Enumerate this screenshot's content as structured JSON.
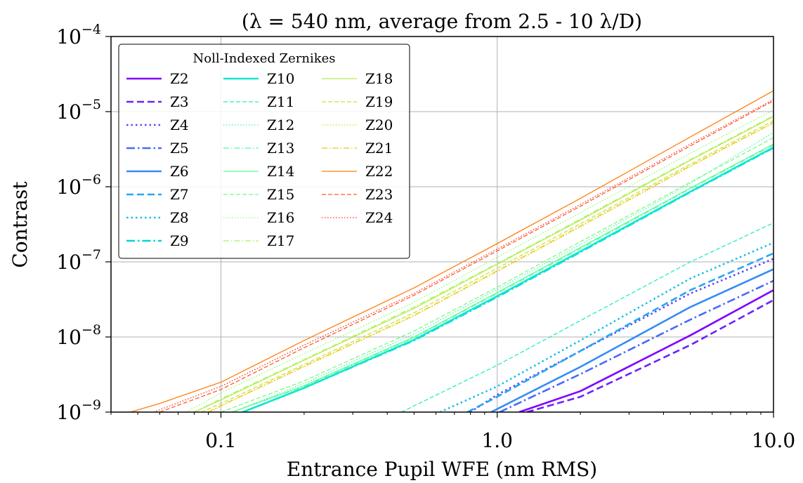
{
  "chart_data": {
    "type": "line",
    "title": "(λ = 540 nm, average from 2.5 - 10 λ/D)",
    "xlabel": "Entrance Pupil WFE (nm RMS)",
    "ylabel": "Contrast",
    "x_scale": "log",
    "y_scale": "log",
    "xlim": [
      0.04,
      10.0
    ],
    "ylim": [
      1e-09,
      0.0001
    ],
    "x_ticks": [
      {
        "value": 0.1,
        "label": "0.1"
      },
      {
        "value": 1.0,
        "label": "1.0"
      },
      {
        "value": 10.0,
        "label": "10.0"
      }
    ],
    "y_ticks": [
      {
        "value": 1e-09,
        "base": "10",
        "exp": "−9"
      },
      {
        "value": 1e-08,
        "base": "10",
        "exp": "−8"
      },
      {
        "value": 1e-07,
        "base": "10",
        "exp": "−7"
      },
      {
        "value": 1e-06,
        "base": "10",
        "exp": "−6"
      },
      {
        "value": 1e-05,
        "base": "10",
        "exp": "−5"
      },
      {
        "value": 0.0001,
        "base": "10",
        "exp": "−4"
      }
    ],
    "grid": true,
    "legend": {
      "title": "Noll-Indexed Zernikes",
      "placement": "top-left",
      "columns": 3
    },
    "series": [
      {
        "name": "Z2",
        "color": "#8000ff",
        "dash": "solid",
        "width": "thick",
        "x": [
          1.2,
          2.0,
          5.0,
          10.0
        ],
        "y": [
          1e-09,
          1.9e-09,
          1.05e-08,
          4.2e-08
        ]
      },
      {
        "name": "Z3",
        "color": "#6a23fe",
        "dash": "dashed",
        "width": "thick",
        "x": [
          1.28,
          2.0,
          5.0,
          10.0
        ],
        "y": [
          1e-09,
          1.6e-09,
          7.8e-09,
          3.1e-08
        ]
      },
      {
        "name": "Z4",
        "color": "#5e47fc",
        "dash": "dotted",
        "width": "thick",
        "x": [
          0.8,
          1.0,
          2.0,
          5.0,
          10.0
        ],
        "y": [
          1e-09,
          1.7e-09,
          6.5e-09,
          3.8e-08,
          1.1e-07
        ]
      },
      {
        "name": "Z5",
        "color": "#4a6afa",
        "dash": "dashdot",
        "width": "thick",
        "x": [
          1.02,
          2.0,
          5.0,
          10.0
        ],
        "y": [
          1e-09,
          3.2e-09,
          1.7e-08,
          5.6e-08
        ]
      },
      {
        "name": "Z6",
        "color": "#348cf5",
        "dash": "solid",
        "width": "thick",
        "x": [
          0.95,
          2.0,
          5.0,
          10.0
        ],
        "y": [
          1e-09,
          4e-09,
          2.5e-08,
          8e-08
        ]
      },
      {
        "name": "Z7",
        "color": "#26a6ef",
        "dash": "dashed",
        "width": "thick",
        "x": [
          0.78,
          1.0,
          2.0,
          5.0,
          10.0
        ],
        "y": [
          1e-09,
          1.6e-09,
          6.5e-09,
          4.2e-08,
          1.3e-07
        ]
      },
      {
        "name": "Z8",
        "color": "#14c0e6",
        "dash": "dotted",
        "width": "thick",
        "x": [
          0.62,
          1.0,
          2.0,
          5.0,
          10.0
        ],
        "y": [
          1e-09,
          2.2e-09,
          9e-09,
          6e-08,
          1.8e-07
        ]
      },
      {
        "name": "Z9",
        "color": "#00d4dc",
        "dash": "dashdot",
        "width": "thick",
        "x": [
          0.12,
          0.2,
          0.5,
          1.0,
          2.0,
          5.0,
          10.0
        ],
        "y": [
          1e-09,
          2.1e-09,
          9e-09,
          3.4e-08,
          1.35e-07,
          8.5e-07,
          3.3e-06
        ]
      },
      {
        "name": "Z10",
        "color": "#12e6d1",
        "dash": "solid",
        "width": "thick",
        "x": [
          0.12,
          0.2,
          0.5,
          1.0,
          2.0,
          5.0,
          10.0
        ],
        "y": [
          1e-09,
          2.1e-09,
          9.2e-09,
          3.5e-08,
          1.38e-07,
          8.6e-07,
          3.35e-06
        ]
      },
      {
        "name": "Z11",
        "color": "#24eec4",
        "dash": "dashed",
        "width": "thin",
        "x": [
          0.45,
          1.0,
          2.0,
          5.0,
          10.0
        ],
        "y": [
          1e-09,
          4.2e-09,
          1.65e-08,
          1e-07,
          3.3e-07
        ]
      },
      {
        "name": "Z12",
        "color": "#38f6b5",
        "dash": "dotted",
        "width": "thin",
        "x": [
          0.11,
          0.2,
          0.5,
          1.0,
          2.0,
          5.0,
          10.0
        ],
        "y": [
          1e-09,
          2.4e-09,
          1.1e-08,
          4.3e-08,
          1.7e-07,
          1.1e-06,
          5.3e-06
        ]
      },
      {
        "name": "Z13",
        "color": "#4cfca4",
        "dash": "dashdot",
        "width": "thin",
        "x": [
          0.11,
          0.2,
          0.5,
          1.0,
          2.0,
          5.0,
          10.0
        ],
        "y": [
          1e-09,
          2.2e-09,
          9.8e-09,
          3.8e-08,
          1.5e-07,
          9.4e-07,
          3.6e-06
        ]
      },
      {
        "name": "Z14",
        "color": "#60fe92",
        "dash": "solid",
        "width": "thin",
        "x": [
          0.11,
          0.2,
          0.5,
          1.0,
          2.0,
          5.0,
          10.0
        ],
        "y": [
          1e-09,
          2.25e-09,
          1e-08,
          3.9e-08,
          1.55e-07,
          9.6e-07,
          3.7e-06
        ]
      },
      {
        "name": "Z15",
        "color": "#74fe80",
        "dash": "dashed",
        "width": "thin",
        "x": [
          0.1,
          0.2,
          0.5,
          1.0,
          2.0,
          5.0,
          10.0
        ],
        "y": [
          1e-09,
          2.6e-09,
          1.2e-08,
          4.6e-08,
          1.85e-07,
          1.15e-06,
          4.5e-06
        ]
      },
      {
        "name": "Z16",
        "color": "#8cfc6e",
        "dash": "dotted",
        "width": "thin",
        "x": [
          0.075,
          0.1,
          0.2,
          0.5,
          1.0,
          2.0,
          5.0,
          10.0
        ],
        "y": [
          1e-09,
          1.8e-09,
          6e-09,
          2.9e-08,
          1.15e-07,
          4.5e-07,
          2.8e-06,
          1.05e-05
        ]
      },
      {
        "name": "Z17",
        "color": "#a0f65c",
        "dash": "dashdot",
        "width": "thin",
        "x": [
          0.08,
          0.1,
          0.2,
          0.5,
          1.0,
          2.0,
          5.0,
          10.0
        ],
        "y": [
          1e-09,
          1.5e-09,
          5e-09,
          2.5e-08,
          9.5e-08,
          3.7e-07,
          2.3e-06,
          8.8e-06
        ]
      },
      {
        "name": "Z18",
        "color": "#b4ee4a",
        "dash": "solid",
        "width": "thin",
        "x": [
          0.08,
          0.1,
          0.2,
          0.5,
          1.0,
          2.0,
          5.0,
          10.0
        ],
        "y": [
          1e-09,
          1.45e-09,
          4.9e-09,
          2.4e-08,
          9.3e-08,
          3.6e-07,
          2.25e-06,
          8.6e-06
        ]
      },
      {
        "name": "Z19",
        "color": "#c8e236",
        "dash": "dashed",
        "width": "thin",
        "x": [
          0.085,
          0.1,
          0.2,
          0.5,
          1.0,
          2.0,
          5.0,
          10.0
        ],
        "y": [
          1e-09,
          1.3e-09,
          4.3e-09,
          2.1e-08,
          8.2e-08,
          3.2e-07,
          2e-06,
          7.6e-06
        ]
      },
      {
        "name": "Z20",
        "color": "#dcd424",
        "dash": "dotted",
        "width": "thin",
        "x": [
          0.09,
          0.1,
          0.2,
          0.5,
          1.0,
          2.0,
          5.0,
          10.0
        ],
        "y": [
          1e-09,
          1.2e-09,
          4e-09,
          1.9e-08,
          7.4e-08,
          2.9e-07,
          1.85e-06,
          7e-06
        ]
      },
      {
        "name": "Z21",
        "color": "#eec412",
        "dash": "dashdot",
        "width": "thin",
        "x": [
          0.09,
          0.1,
          0.2,
          0.5,
          1.0,
          2.0,
          5.0,
          10.0
        ],
        "y": [
          1e-09,
          1.22e-09,
          4.1e-09,
          1.95e-08,
          7.6e-08,
          3e-07,
          1.9e-06,
          7.2e-06
        ]
      },
      {
        "name": "Z22",
        "color": "#ff7f0e",
        "dash": "solid",
        "width": "thin",
        "x": [
          0.047,
          0.06,
          0.1,
          0.2,
          0.5,
          1.0,
          2.0,
          5.0,
          10.0
        ],
        "y": [
          1e-09,
          1.3e-09,
          2.5e-09,
          9e-09,
          4.5e-08,
          1.75e-07,
          7e-07,
          4.6e-06,
          1.9e-05
        ]
      },
      {
        "name": "Z23",
        "color": "#ff5b2e",
        "dash": "dashed",
        "width": "thin",
        "x": [
          0.06,
          0.1,
          0.2,
          0.5,
          1.0,
          2.0,
          5.0,
          10.0
        ],
        "y": [
          1e-09,
          2e-09,
          7.2e-09,
          3.6e-08,
          1.4e-07,
          5.5e-07,
          3.5e-06,
          1.4e-05
        ]
      },
      {
        "name": "Z24",
        "color": "#ff2a14",
        "dash": "dotted",
        "width": "thin",
        "x": [
          0.057,
          0.1,
          0.2,
          0.5,
          1.0,
          2.0,
          5.0,
          10.0
        ],
        "y": [
          1e-09,
          2.2e-09,
          7.8e-09,
          3.8e-08,
          1.48e-07,
          5.8e-07,
          3.7e-06,
          1.45e-05
        ]
      }
    ]
  }
}
